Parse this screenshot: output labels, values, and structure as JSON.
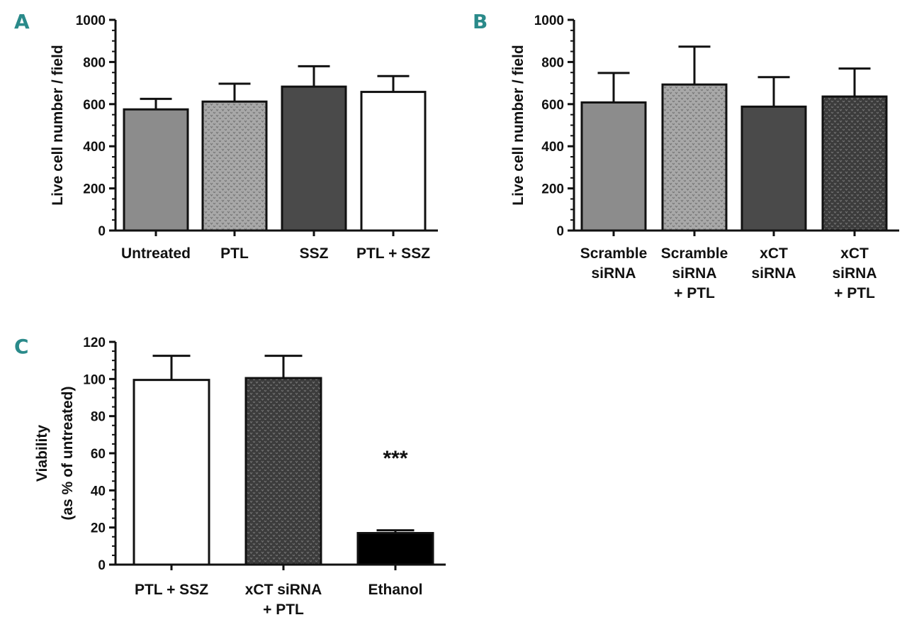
{
  "colors": {
    "panel_letter": "#2a8a8a",
    "light_gray": "#8c8c8c",
    "mid_gray": "#b0b0b0",
    "dark_gray": "#4a4a4a",
    "darker_gray": "#3c3c3c",
    "white": "#ffffff",
    "black": "#000000"
  },
  "chart_data": [
    {
      "panel": "A",
      "type": "bar",
      "ylabel": "Live cell number / field",
      "ylim": [
        0,
        1000
      ],
      "yticks": [
        "0",
        "200",
        "400",
        "600",
        "800",
        "1000"
      ],
      "categories": [
        [
          "Untreated"
        ],
        [
          "PTL"
        ],
        [
          "SSZ"
        ],
        [
          "PTL + SSZ"
        ]
      ],
      "values": [
        575,
        612,
        683,
        658
      ],
      "errors": [
        50,
        85,
        97,
        75
      ],
      "fills": [
        "light_gray",
        "dotted_gray",
        "dark_gray",
        "white"
      ]
    },
    {
      "panel": "B",
      "type": "bar",
      "ylabel": "Live cell number / field",
      "ylim": [
        0,
        1000
      ],
      "yticks": [
        "0",
        "200",
        "400",
        "600",
        "800",
        "1000"
      ],
      "categories": [
        [
          "Scramble",
          "siRNA"
        ],
        [
          "Scramble",
          "siRNA",
          "+ PTL"
        ],
        [
          "xCT",
          "siRNA"
        ],
        [
          "xCT",
          "siRNA",
          "+ PTL"
        ]
      ],
      "values": [
        608,
        693,
        588,
        636
      ],
      "errors": [
        140,
        180,
        140,
        133
      ],
      "fills": [
        "light_gray",
        "dotted_gray",
        "dark_gray",
        "dotted_dark"
      ]
    },
    {
      "panel": "C",
      "type": "bar",
      "ylabel": "Viability",
      "ylabel2": "(as % of untreated)",
      "ylim": [
        0,
        120
      ],
      "yticks": [
        "0",
        "20",
        "40",
        "60",
        "80",
        "100",
        "120"
      ],
      "categories": [
        [
          "PTL + SSZ"
        ],
        [
          "xCT siRNA",
          "+ PTL"
        ],
        [
          "Ethanol"
        ]
      ],
      "values": [
        99.5,
        100.5,
        17
      ],
      "errors": [
        13,
        12,
        1.5
      ],
      "fills": [
        "white",
        "dotted_dark",
        "black"
      ],
      "annotation": {
        "text": "***",
        "category_index": 2,
        "value": 58
      }
    }
  ]
}
